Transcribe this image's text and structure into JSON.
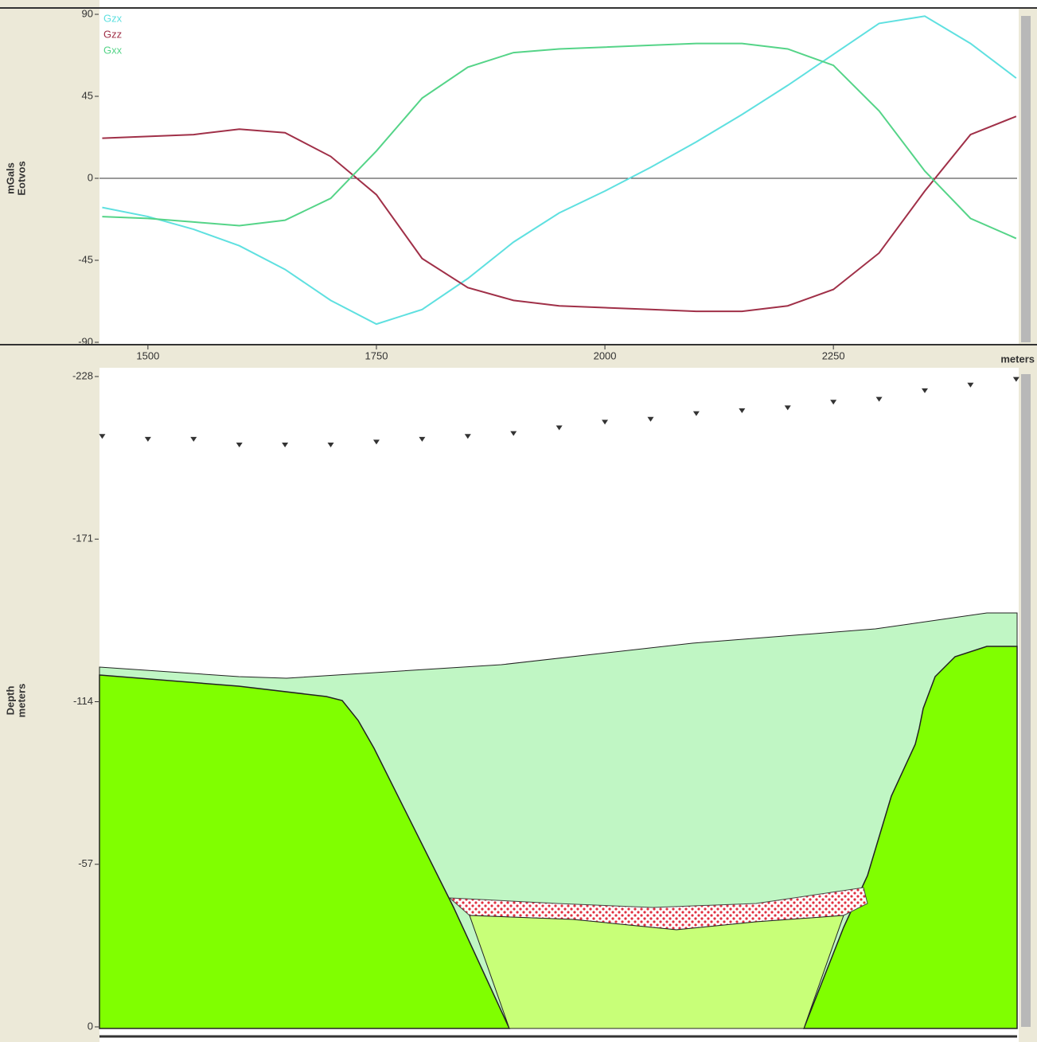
{
  "chart_data": [
    {
      "type": "line",
      "ylabel": [
        "mGals",
        "Eotvos"
      ],
      "xlabel": "meters",
      "x": [
        1450,
        1500,
        1550,
        1600,
        1650,
        1700,
        1750,
        1800,
        1850,
        1900,
        1950,
        2000,
        2050,
        2100,
        2150,
        2200,
        2250,
        2300,
        2350,
        2400,
        2450
      ],
      "xlim": [
        1447,
        2451
      ],
      "xticks": [
        1500,
        1750,
        2000,
        2250
      ],
      "ylim": [
        -90,
        90
      ],
      "yticks": [
        90,
        45,
        0,
        -45,
        -90
      ],
      "series": [
        {
          "name": "Gzx",
          "color": "#5fe0e0",
          "values": [
            -16,
            -21,
            -28,
            -37,
            -50,
            -67,
            -80,
            -72,
            -55,
            -35,
            -19,
            -7,
            6,
            20,
            35,
            51,
            68,
            85,
            89,
            74,
            55
          ]
        },
        {
          "name": "Gzz",
          "color": "#a03048",
          "values": [
            22,
            23,
            24,
            27,
            25,
            12,
            -9,
            -44,
            -60,
            -67,
            -70,
            -71,
            -72,
            -73,
            -73,
            -70,
            -61,
            -41,
            -7,
            24,
            34
          ]
        },
        {
          "name": "Gxx",
          "color": "#55d488",
          "values": [
            -21,
            -22,
            -24,
            -26,
            -23,
            -11,
            15,
            44,
            61,
            69,
            71,
            72,
            73,
            74,
            74,
            71,
            62,
            37,
            4,
            -22,
            -33
          ]
        }
      ]
    },
    {
      "type": "scatter",
      "ylabel": [
        "Depth",
        "meters"
      ],
      "x": [
        1450,
        1500,
        1550,
        1600,
        1650,
        1700,
        1750,
        1800,
        1850,
        1900,
        1950,
        2000,
        2050,
        2100,
        2150,
        2200,
        2250,
        2300,
        2350,
        2400,
        2450
      ],
      "xlim": [
        1447,
        2451
      ],
      "values": [
        -207,
        -206,
        -206,
        -204,
        -204,
        -204,
        -205,
        -206,
        -207,
        -208,
        -210,
        -212,
        -213,
        -215,
        -216,
        -217,
        -219,
        -220,
        -223,
        -225,
        -227
      ],
      "color": "#333333",
      "ylim": [
        0,
        -228
      ],
      "yticks": [
        -228,
        -171,
        -114,
        -57,
        0
      ]
    }
  ]
}
